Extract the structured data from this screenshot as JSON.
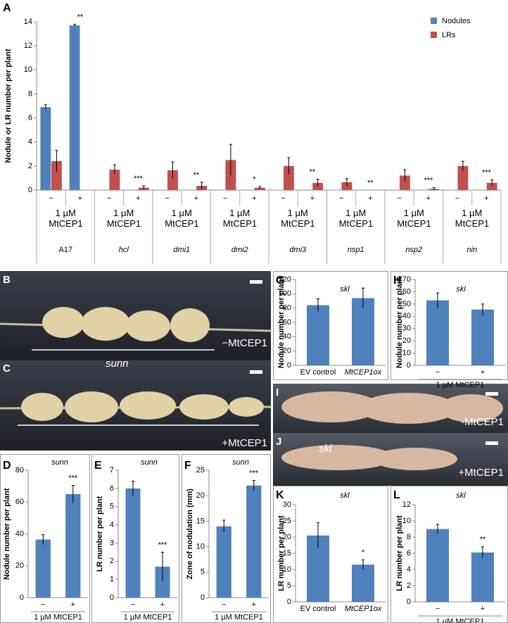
{
  "chart_data": [
    {
      "type": "bar",
      "panel": "A",
      "y_label": "Nodule or LR number per plant",
      "categories": [
        "−",
        "+",
        "−",
        "+",
        "−",
        "+",
        "−",
        "+",
        "−",
        "+",
        "−",
        "+",
        "−",
        "+",
        "−",
        "+"
      ],
      "groups": [
        {
          "name": "A17",
          "treatment": "1 µM MtCEP1"
        },
        {
          "name": "hcl",
          "treatment": "1 µM MtCEP1"
        },
        {
          "name": "dmi1",
          "treatment": "1 µM MtCEP1"
        },
        {
          "name": "dmi2",
          "treatment": "1 µM MtCEP1"
        },
        {
          "name": "dmi3",
          "treatment": "1 µM MtCEP1"
        },
        {
          "name": "nsp1",
          "treatment": "1 µM MtCEP1"
        },
        {
          "name": "nsp2",
          "treatment": "1 µM MtCEP1"
        },
        {
          "name": "nin",
          "treatment": "1 µM MtCEP1"
        }
      ],
      "series": [
        {
          "name": "Nodules",
          "color": "#4f81bd",
          "values": [
            6.9,
            13.7,
            0,
            0,
            0,
            0,
            0,
            0,
            0,
            0,
            0,
            0,
            0,
            0,
            0,
            0
          ],
          "errors": [
            0.2,
            0.1,
            null,
            null,
            null,
            null,
            null,
            null,
            null,
            null,
            null,
            null,
            null,
            null,
            null,
            null
          ]
        },
        {
          "name": "LRs",
          "color": "#c0504d",
          "values": [
            2.4,
            0,
            1.7,
            0.2,
            1.65,
            0.35,
            2.5,
            0.2,
            2.0,
            0.6,
            0.65,
            0,
            1.2,
            0.1,
            2.0,
            0.6
          ],
          "errors": [
            0.9,
            null,
            0.4,
            0.15,
            0.7,
            0.3,
            1.3,
            0.1,
            0.7,
            0.3,
            0.3,
            null,
            0.5,
            0.1,
            0.4,
            0.25
          ]
        }
      ],
      "significance": [
        null,
        "**",
        null,
        "***",
        null,
        "**",
        null,
        "*",
        null,
        "**",
        null,
        "**",
        null,
        "***",
        null,
        "***"
      ],
      "ylim": [
        0,
        14
      ],
      "yticks": [
        0,
        2,
        4,
        6,
        8,
        10,
        12,
        14
      ],
      "legend": "top-right"
    },
    {
      "type": "bar",
      "panel": "D",
      "title": "sunn",
      "y_label": "Nodule number per plant",
      "x_label": "1 µM MtCEP1",
      "categories": [
        "−",
        "+"
      ],
      "values": [
        36.5,
        65
      ],
      "errors": [
        3,
        5.5
      ],
      "significance": [
        null,
        "***"
      ],
      "color": "#4f81bd",
      "ylim": [
        0,
        80
      ],
      "yticks": [
        0,
        20,
        40,
        60,
        80
      ]
    },
    {
      "type": "bar",
      "panel": "E",
      "title": "sunn",
      "y_label": "LR number per plant",
      "x_label": "1 µM MtCEP1",
      "categories": [
        "−",
        "+"
      ],
      "values": [
        6.0,
        1.7
      ],
      "errors": [
        0.4,
        0.8
      ],
      "significance": [
        null,
        "***"
      ],
      "color": "#4f81bd",
      "ylim": [
        0,
        7
      ],
      "yticks": [
        0,
        1,
        2,
        3,
        4,
        5,
        6,
        7
      ]
    },
    {
      "type": "bar",
      "panel": "F",
      "title": "sunn",
      "y_label": "Zone of nodulation (mm)",
      "x_label": "1 µM MtCEP1",
      "categories": [
        "−",
        "+"
      ],
      "values": [
        14,
        22
      ],
      "errors": [
        1.2,
        1
      ],
      "significance": [
        null,
        "***"
      ],
      "color": "#4f81bd",
      "ylim": [
        0,
        25
      ],
      "yticks": [
        0,
        5,
        10,
        15,
        20,
        25
      ]
    },
    {
      "type": "bar",
      "panel": "G",
      "title": "skl",
      "y_label": "Nodule number per plant",
      "categories": [
        "EV control",
        "MtCEP1ox"
      ],
      "values": [
        84,
        94
      ],
      "errors": [
        9,
        14
      ],
      "color": "#4f81bd",
      "ylim": [
        0,
        120
      ],
      "yticks": [
        0,
        20,
        40,
        60,
        80,
        100,
        120
      ]
    },
    {
      "type": "bar",
      "panel": "H",
      "title": "skl",
      "y_label": "Nodule number per plant",
      "x_label": "1 µM MtCEP1",
      "categories": [
        "−",
        "+"
      ],
      "values": [
        53,
        45.5
      ],
      "errors": [
        6,
        4.5
      ],
      "color": "#4f81bd",
      "ylim": [
        0,
        70
      ],
      "yticks": [
        0,
        10,
        20,
        30,
        40,
        50,
        60,
        70
      ]
    },
    {
      "type": "bar",
      "panel": "K",
      "title": "skl",
      "y_label": "LR number per plant",
      "categories": [
        "EV control",
        "MtCEP1ox"
      ],
      "values": [
        20.5,
        11.5
      ],
      "errors": [
        4,
        1.5
      ],
      "significance": [
        null,
        "*"
      ],
      "color": "#4f81bd",
      "ylim": [
        0,
        30
      ],
      "yticks": [
        0,
        5,
        10,
        15,
        20,
        25,
        30
      ]
    },
    {
      "type": "bar",
      "panel": "L",
      "title": "skl",
      "y_label": "LR number per plant",
      "x_label": "1 µM MtCEP1",
      "categories": [
        "−",
        "+"
      ],
      "values": [
        9,
        6.1
      ],
      "errors": [
        0.6,
        0.7
      ],
      "significance": [
        null,
        "**"
      ],
      "color": "#4f81bd",
      "ylim": [
        0,
        12
      ],
      "yticks": [
        0,
        2,
        4,
        6,
        8,
        10,
        12
      ]
    }
  ],
  "photos": [
    {
      "panel": "B",
      "label": "−MtCEP1"
    },
    {
      "panel": "C",
      "label": "+MtCEP1"
    },
    {
      "panel": "I",
      "label": "-MtCEP1"
    },
    {
      "panel": "J",
      "label": "+MtCEP1"
    }
  ],
  "photo_genotypes": [
    "sunn",
    "skl"
  ]
}
